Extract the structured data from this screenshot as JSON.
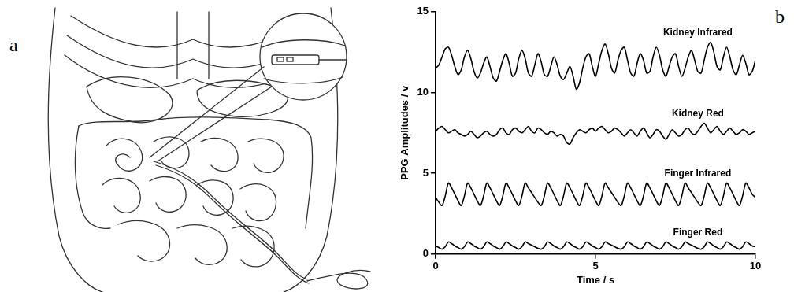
{
  "panel_labels": [
    "a",
    "b"
  ],
  "chart_data": {
    "type": "line",
    "x_label": "Time / s",
    "y_label": "PPG Amplitudes / v",
    "xlim": [
      0,
      10
    ],
    "xticks": [
      0,
      5,
      10
    ],
    "ylim": [
      0,
      15
    ],
    "yticks": [
      0,
      5,
      10,
      15
    ],
    "grid": false,
    "x": [
      0,
      0.1,
      0.2,
      0.3,
      0.4,
      0.5,
      0.6,
      0.7,
      0.8,
      0.9,
      1,
      1.1,
      1.2,
      1.3,
      1.4,
      1.5,
      1.6,
      1.7,
      1.8,
      1.9,
      2,
      2.1,
      2.2,
      2.3,
      2.4,
      2.5,
      2.6,
      2.7,
      2.8,
      2.9,
      3,
      3.1,
      3.2,
      3.3,
      3.4,
      3.5,
      3.6,
      3.7,
      3.8,
      3.9,
      4,
      4.1,
      4.2,
      4.3,
      4.4,
      4.5,
      4.6,
      4.7,
      4.8,
      4.9,
      5,
      5.1,
      5.2,
      5.3,
      5.4,
      5.5,
      5.6,
      5.7,
      5.8,
      5.9,
      6,
      6.1,
      6.2,
      6.3,
      6.4,
      6.5,
      6.6,
      6.7,
      6.8,
      6.9,
      7,
      7.1,
      7.2,
      7.3,
      7.4,
      7.5,
      7.6,
      7.7,
      7.8,
      7.9,
      8,
      8.1,
      8.2,
      8.3,
      8.4,
      8.5,
      8.6,
      8.7,
      8.8,
      8.9,
      9,
      9.1,
      9.2,
      9.3,
      9.4,
      9.5,
      9.6,
      9.7,
      9.8,
      9.9,
      10
    ],
    "series": [
      {
        "name": "Kidney Infrared",
        "color": "#000000",
        "line_style": "solid",
        "values": [
          11.5,
          11.7,
          12.2,
          12.7,
          12.8,
          12.3,
          11.6,
          11.1,
          11.4,
          12.2,
          12.6,
          12.1,
          11.3,
          10.9,
          11.2,
          11.8,
          12.2,
          11.6,
          10.9,
          10.7,
          11.3,
          12.0,
          12.4,
          11.8,
          11.0,
          11.2,
          12.1,
          12.6,
          12.1,
          11.2,
          11.0,
          11.7,
          12.4,
          11.9,
          11.1,
          11.0,
          11.6,
          12.2,
          11.7,
          11.0,
          10.8,
          11.2,
          11.6,
          11.0,
          10.2,
          10.6,
          11.5,
          12.2,
          12.4,
          11.6,
          11.0,
          11.8,
          12.6,
          13.0,
          12.4,
          11.5,
          11.2,
          12.0,
          12.6,
          12.8,
          12.0,
          11.2,
          11.0,
          11.8,
          12.4,
          12.0,
          11.2,
          11.3,
          12.2,
          12.8,
          12.3,
          11.4,
          11.0,
          11.6,
          12.2,
          12.4,
          11.6,
          11.0,
          11.5,
          12.2,
          12.6,
          12.0,
          11.3,
          11.2,
          12.0,
          12.8,
          13.1,
          12.5,
          11.6,
          11.4,
          12.2,
          12.8,
          12.2,
          11.4,
          11.1,
          11.7,
          12.3,
          11.8,
          11.1,
          11.3,
          12.0
        ]
      },
      {
        "name": "Kidney Red",
        "color": "#000000",
        "line_style": "solid",
        "values": [
          7.6,
          7.8,
          7.9,
          7.7,
          7.5,
          7.6,
          7.7,
          7.5,
          7.4,
          7.3,
          7.4,
          7.6,
          7.4,
          7.2,
          7.3,
          7.5,
          7.6,
          7.4,
          7.3,
          7.4,
          7.7,
          7.8,
          7.5,
          7.4,
          7.7,
          7.8,
          7.6,
          7.5,
          7.7,
          7.9,
          7.6,
          7.5,
          7.8,
          7.7,
          7.5,
          7.4,
          7.6,
          7.5,
          7.3,
          7.4,
          7.3,
          6.9,
          6.8,
          7.2,
          7.5,
          7.7,
          7.6,
          7.5,
          7.7,
          7.8,
          7.6,
          7.8,
          7.9,
          7.7,
          7.5,
          7.6,
          7.8,
          7.7,
          7.5,
          7.3,
          7.5,
          7.7,
          7.5,
          7.3,
          7.6,
          7.8,
          7.5,
          7.2,
          7.4,
          7.7,
          7.6,
          7.3,
          7.1,
          7.4,
          7.7,
          7.5,
          7.3,
          7.4,
          7.7,
          7.8,
          7.5,
          7.4,
          7.6,
          7.9,
          8.1,
          7.8,
          7.5,
          7.7,
          7.9,
          7.6,
          7.4,
          7.6,
          7.8,
          7.6,
          7.4,
          7.5,
          7.7,
          7.6,
          7.4,
          7.5,
          7.6
        ]
      },
      {
        "name": "Finger Infrared",
        "color": "#000000",
        "line_style": "solid",
        "values": [
          3.5,
          3.2,
          3.0,
          3.6,
          4.4,
          4.1,
          3.7,
          3.3,
          3.0,
          3.6,
          4.4,
          4.1,
          3.7,
          3.3,
          3.0,
          3.6,
          4.4,
          4.1,
          3.7,
          3.3,
          3.0,
          3.6,
          4.4,
          4.1,
          3.7,
          3.3,
          3.0,
          3.6,
          4.4,
          4.1,
          3.8,
          3.5,
          3.2,
          3.0,
          3.6,
          4.4,
          4.1,
          3.7,
          3.3,
          3.0,
          3.6,
          4.4,
          4.1,
          3.7,
          3.3,
          3.0,
          3.6,
          4.4,
          4.1,
          3.7,
          3.3,
          3.0,
          3.6,
          4.4,
          4.1,
          3.8,
          3.5,
          3.2,
          3.0,
          3.6,
          4.4,
          4.1,
          3.7,
          3.3,
          3.0,
          3.6,
          4.4,
          4.1,
          3.7,
          3.3,
          3.0,
          3.6,
          4.4,
          4.1,
          3.7,
          3.3,
          3.0,
          3.6,
          4.4,
          4.1,
          3.8,
          3.5,
          3.2,
          3.0,
          3.6,
          4.4,
          4.1,
          3.7,
          3.3,
          3.0,
          3.6,
          4.4,
          4.1,
          3.7,
          3.3,
          3.0,
          3.6,
          4.4,
          4.1,
          3.7,
          3.5
        ]
      },
      {
        "name": "Finger Red",
        "color": "#000000",
        "line_style": "solid",
        "values": [
          0.5,
          0.4,
          0.3,
          0.45,
          0.75,
          0.65,
          0.5,
          0.4,
          0.3,
          0.45,
          0.75,
          0.65,
          0.5,
          0.4,
          0.3,
          0.45,
          0.75,
          0.65,
          0.5,
          0.4,
          0.3,
          0.45,
          0.75,
          0.65,
          0.5,
          0.4,
          0.3,
          0.45,
          0.75,
          0.65,
          0.55,
          0.45,
          0.35,
          0.3,
          0.45,
          0.75,
          0.65,
          0.5,
          0.4,
          0.3,
          0.45,
          0.75,
          0.65,
          0.5,
          0.4,
          0.3,
          0.45,
          0.75,
          0.65,
          0.5,
          0.4,
          0.3,
          0.45,
          0.75,
          0.65,
          0.55,
          0.45,
          0.35,
          0.3,
          0.45,
          0.75,
          0.65,
          0.5,
          0.4,
          0.3,
          0.45,
          0.75,
          0.65,
          0.5,
          0.4,
          0.3,
          0.45,
          0.75,
          0.65,
          0.5,
          0.4,
          0.3,
          0.45,
          0.75,
          0.65,
          0.55,
          0.45,
          0.35,
          0.3,
          0.45,
          0.75,
          0.65,
          0.5,
          0.4,
          0.3,
          0.45,
          0.75,
          0.65,
          0.5,
          0.4,
          0.3,
          0.45,
          0.75,
          0.65,
          0.5,
          0.45
        ]
      }
    ]
  }
}
